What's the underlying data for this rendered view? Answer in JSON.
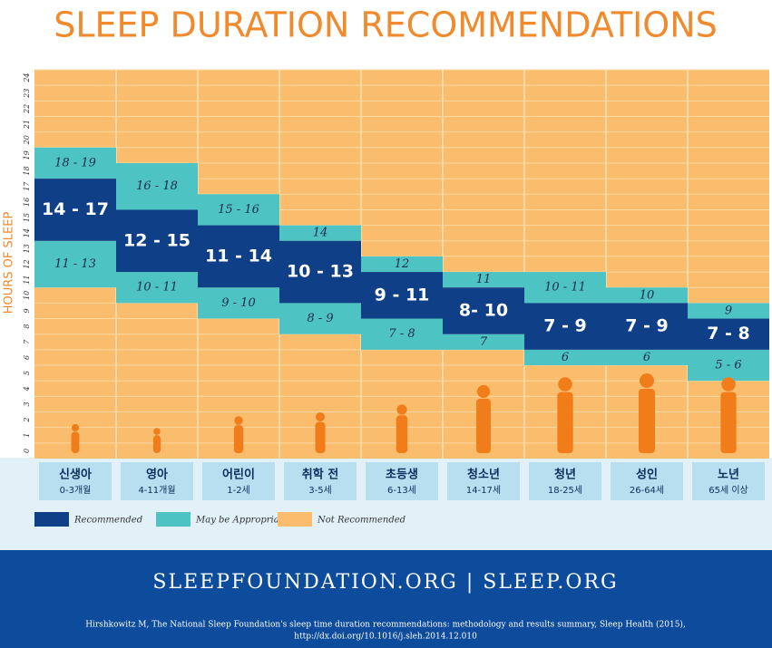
{
  "chart_data": {
    "type": "floating-range",
    "title": "SLEEP DURATION RECOMMENDATIONS",
    "y_label": "HOURS OF SLEEP",
    "categories": [
      "신생아",
      "영아",
      "어린이",
      "취학 전",
      "초등생",
      "청소년",
      "청년",
      "성인",
      "노년"
    ],
    "category_sublabels": [
      "0-3개월",
      "4-11개월",
      "1-2세",
      "3-5세",
      "6-13세",
      "14-17세",
      "18-25세",
      "26-64세",
      "65세 이상"
    ],
    "ylim": [
      0,
      24
    ],
    "yticks": [
      0,
      1,
      2,
      3,
      4,
      5,
      6,
      7,
      8,
      9,
      10,
      11,
      12,
      13,
      14,
      15,
      16,
      17,
      18,
      19,
      20,
      21,
      22,
      23,
      24
    ],
    "grid": true,
    "background": {
      "name": "Not Recommended",
      "color": "#f9bd6d"
    },
    "series": [
      {
        "name": "Recommended",
        "color": "#0f3f86",
        "values": [
          [
            14,
            17
          ],
          [
            12,
            15
          ],
          [
            11,
            14
          ],
          [
            10,
            13
          ],
          [
            9,
            11
          ],
          [
            8,
            10
          ],
          [
            7,
            9
          ],
          [
            7,
            9
          ],
          [
            7,
            8
          ]
        ],
        "value_labels": [
          "14 - 17",
          "12 - 15",
          "11 - 14",
          "10 - 13",
          "9 - 11",
          "8- 10",
          "7 - 9",
          "7 - 9",
          "7 - 8"
        ]
      },
      {
        "name": "May be Appropriate",
        "color": "#4ec3c4",
        "values": [
          [
            [
              18,
              19
            ],
            [
              11,
              13
            ]
          ],
          [
            [
              16,
              18
            ],
            [
              10,
              11
            ]
          ],
          [
            [
              15,
              16
            ],
            [
              9,
              10
            ]
          ],
          [
            [
              14,
              14
            ],
            [
              8,
              9
            ]
          ],
          [
            [
              12,
              12
            ],
            [
              7,
              8
            ]
          ],
          [
            [
              11,
              11
            ],
            [
              7,
              7
            ]
          ],
          [
            [
              10,
              11
            ],
            [
              6,
              6
            ]
          ],
          [
            [
              10,
              10
            ],
            [
              6,
              6
            ]
          ],
          [
            [
              9,
              9
            ],
            [
              5,
              6
            ]
          ]
        ],
        "value_labels": [
          [
            "18 - 19",
            "11 - 13"
          ],
          [
            "16 - 18",
            "10 - 11"
          ],
          [
            "15 - 16",
            "9 - 10"
          ],
          [
            "14",
            "8 - 9"
          ],
          [
            "12",
            "7 - 8"
          ],
          [
            "11",
            "7"
          ],
          [
            "10 - 11",
            "6"
          ],
          [
            "10",
            "6"
          ],
          [
            "9",
            "5 - 6"
          ]
        ]
      }
    ]
  },
  "footer": {
    "sites": "SLEEPFOUNDATION.ORG | SLEEP.ORG",
    "citation": [
      "Hirshkowitz M, The National Sleep Foundation's sleep time duration recommendations: methodology and results summary, Sleep Health (2015),",
      "http://dx.doi.org/10.1016/j.sleh.2014.12.010"
    ]
  }
}
